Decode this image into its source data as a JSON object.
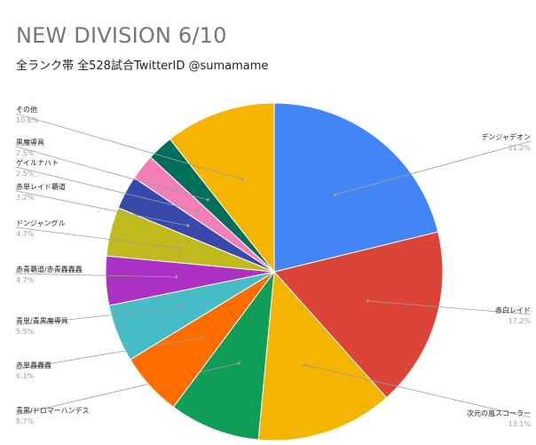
{
  "title": "NEW DIVISION 6/10",
  "subtitle": "全ランク帯 全528試合TwitterID @sumamame",
  "chart_data": {
    "type": "pie",
    "title": "NEW DIVISION 6/10",
    "subtitle": "全ランク帯 全528試合TwitterID @sumamame",
    "slices": [
      {
        "label": "デンジャデオン",
        "value": 21.2,
        "pct_text": "21.2%",
        "color": "#4285f4"
      },
      {
        "label": "赤白レイド",
        "value": 17.2,
        "pct_text": "17.2%",
        "color": "#db4437"
      },
      {
        "label": "次元の嵐スコーラー",
        "value": 13.1,
        "pct_text": "13.1%",
        "color": "#f4b400"
      },
      {
        "label": "青黒/ドロマーハンデス",
        "value": 8.7,
        "pct_text": "8.7%",
        "color": "#0f9d58"
      },
      {
        "label": "赤単轟轟轟",
        "value": 6.1,
        "pct_text": "6.1%",
        "color": "#ff6d01"
      },
      {
        "label": "青単/青黒魔導具",
        "value": 5.5,
        "pct_text": "5.5%",
        "color": "#46bdc6"
      },
      {
        "label": "赤青覇道/赤青轟轟轟",
        "value": 4.7,
        "pct_text": "4.7%",
        "color": "#ab30c4"
      },
      {
        "label": "ドンジャングル",
        "value": 4.7,
        "pct_text": "4.7%",
        "color": "#c0ba1f"
      },
      {
        "label": "赤単レイド覇道",
        "value": 3.2,
        "pct_text": "3.2%",
        "color": "#3949ab"
      },
      {
        "label": "ゲイルナハト",
        "value": 2.5,
        "pct_text": "2.5%",
        "color": "#f47fb8"
      },
      {
        "label": "黒魔導具",
        "value": 2.5,
        "pct_text": "2.5%",
        "color": "#006f5a"
      },
      {
        "label": "その他",
        "value": 10.6,
        "pct_text": "10.6%",
        "color": "#f4b400"
      }
    ]
  }
}
